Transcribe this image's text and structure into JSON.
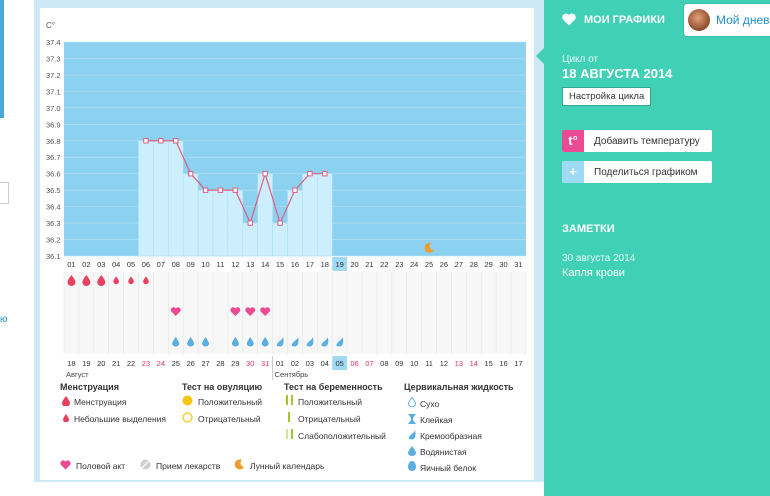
{
  "left_fragments": [
    "ю"
  ],
  "chart": {
    "unit": "C°",
    "y_ticks": [
      "37.4",
      "37.3",
      "37.2",
      "37.1",
      "37.0",
      "36.9",
      "36.8",
      "36.7",
      "36.6",
      "36.5",
      "36.4",
      "36.3",
      "36.2",
      "36.1"
    ],
    "cycle_days": [
      "01",
      "02",
      "03",
      "04",
      "05",
      "06",
      "07",
      "08",
      "09",
      "10",
      "11",
      "12",
      "13",
      "14",
      "15",
      "16",
      "17",
      "18",
      "19",
      "20",
      "21",
      "22",
      "23",
      "24",
      "25",
      "26",
      "27",
      "28",
      "29",
      "30",
      "31"
    ],
    "current_day_index": 18,
    "temperatures": [
      {
        "day": 6,
        "t": 36.8
      },
      {
        "day": 7,
        "t": 36.8
      },
      {
        "day": 8,
        "t": 36.8
      },
      {
        "day": 9,
        "t": 36.6
      },
      {
        "day": 10,
        "t": 36.5
      },
      {
        "day": 11,
        "t": 36.5
      },
      {
        "day": 12,
        "t": 36.5
      },
      {
        "day": 13,
        "t": 36.3
      },
      {
        "day": 14,
        "t": 36.6
      },
      {
        "day": 15,
        "t": 36.3
      },
      {
        "day": 16,
        "t": 36.5
      },
      {
        "day": 17,
        "t": 36.6
      },
      {
        "day": 18,
        "t": 36.6
      }
    ],
    "y_range": [
      36.1,
      37.4
    ],
    "moon_day": 25,
    "menstruation": [
      {
        "day": 1,
        "type": "heavy"
      },
      {
        "day": 2,
        "type": "heavy"
      },
      {
        "day": 3,
        "type": "heavy"
      },
      {
        "day": 4,
        "type": "light"
      },
      {
        "day": 5,
        "type": "light"
      },
      {
        "day": 6,
        "type": "light"
      }
    ],
    "intercourse_days": [
      8,
      12,
      13,
      14
    ],
    "fluid": [
      {
        "day": 8,
        "type": "watery"
      },
      {
        "day": 9,
        "type": "watery"
      },
      {
        "day": 10,
        "type": "watery"
      },
      {
        "day": 12,
        "type": "watery"
      },
      {
        "day": 13,
        "type": "watery"
      },
      {
        "day": 14,
        "type": "watery"
      },
      {
        "day": 15,
        "type": "creamy"
      },
      {
        "day": 16,
        "type": "creamy"
      },
      {
        "day": 17,
        "type": "creamy"
      },
      {
        "day": 18,
        "type": "creamy"
      },
      {
        "day": 19,
        "type": "creamy"
      }
    ],
    "calendar_dates": [
      {
        "d": "18",
        "red": false
      },
      {
        "d": "19",
        "red": false
      },
      {
        "d": "20",
        "red": false
      },
      {
        "d": "21",
        "red": false
      },
      {
        "d": "22",
        "red": false
      },
      {
        "d": "23",
        "red": true
      },
      {
        "d": "24",
        "red": true
      },
      {
        "d": "25",
        "red": false
      },
      {
        "d": "26",
        "red": false
      },
      {
        "d": "27",
        "red": false
      },
      {
        "d": "28",
        "red": false
      },
      {
        "d": "29",
        "red": false
      },
      {
        "d": "30",
        "red": true
      },
      {
        "d": "31",
        "red": true
      },
      {
        "d": "01",
        "red": false
      },
      {
        "d": "02",
        "red": false
      },
      {
        "d": "03",
        "red": false
      },
      {
        "d": "04",
        "red": false
      },
      {
        "d": "05",
        "red": false
      },
      {
        "d": "06",
        "red": true
      },
      {
        "d": "07",
        "red": true
      },
      {
        "d": "08",
        "red": false
      },
      {
        "d": "09",
        "red": false
      },
      {
        "d": "10",
        "red": false
      },
      {
        "d": "11",
        "red": false
      },
      {
        "d": "12",
        "red": false
      },
      {
        "d": "13",
        "red": true
      },
      {
        "d": "14",
        "red": true
      },
      {
        "d": "15",
        "red": false
      },
      {
        "d": "16",
        "red": false
      },
      {
        "d": "17",
        "red": false
      }
    ],
    "month_labels": [
      "Август",
      "Сентябрь"
    ]
  },
  "legend": {
    "menstruation": {
      "title": "Менструация",
      "items": [
        "Менструация",
        "Небольшие выделения"
      ]
    },
    "ovulation": {
      "title": "Тест на овуляцию",
      "items": [
        "Положительный",
        "Отрицательный"
      ]
    },
    "pregnancy": {
      "title": "Тест на беременность",
      "items": [
        "Положительный",
        "Отрицательный",
        "Слабоположительный"
      ]
    },
    "cervical": {
      "title": "Цервикальная жидкость",
      "items": [
        "Сухо",
        "Клейкая",
        "Кремообразная",
        "Водянистая",
        "Яичный белок"
      ]
    },
    "bottom": [
      "Половой акт",
      "Прием лекарств",
      "Лунный календарь"
    ]
  },
  "colors": {
    "menstruation": "#e8405e",
    "heart": "#ec4a93",
    "drop": "#5aaee0",
    "sidebar": "#3fd0b6",
    "chart_bg": "#8dd1f0",
    "bar": "#cdeefc",
    "line": "#de5d80",
    "yellow": "#f5c518",
    "green": "#9dc830",
    "moon": "#ee9c2c"
  },
  "sidebar": {
    "title": "МОИ ГРАФИКИ",
    "user_name": "Мой дневн",
    "cycle_label": "Цикл от",
    "cycle_date": "18 АВГУСТА 2014",
    "cycle_settings": "Настройка цикла",
    "add_temp": "Добавить температуру",
    "share": "Поделиться графиком",
    "notes_title": "ЗАМЕТКИ",
    "note_date": "30 августа 2014",
    "note_text": "Капля крови"
  }
}
